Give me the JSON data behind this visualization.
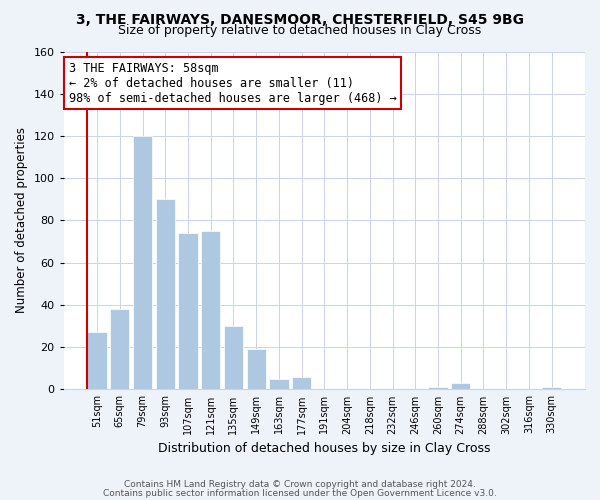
{
  "title": "3, THE FAIRWAYS, DANESMOOR, CHESTERFIELD, S45 9BG",
  "subtitle": "Size of property relative to detached houses in Clay Cross",
  "xlabel": "Distribution of detached houses by size in Clay Cross",
  "ylabel": "Number of detached properties",
  "bar_labels": [
    "51sqm",
    "65sqm",
    "79sqm",
    "93sqm",
    "107sqm",
    "121sqm",
    "135sqm",
    "149sqm",
    "163sqm",
    "177sqm",
    "191sqm",
    "204sqm",
    "218sqm",
    "232sqm",
    "246sqm",
    "260sqm",
    "274sqm",
    "288sqm",
    "302sqm",
    "316sqm",
    "330sqm"
  ],
  "bar_values": [
    27,
    38,
    120,
    90,
    74,
    75,
    30,
    19,
    5,
    6,
    0,
    0,
    0,
    0,
    0,
    1,
    3,
    0,
    0,
    0,
    1
  ],
  "bar_color": "#adc8e0",
  "highlight_color": "#cc0000",
  "annotation_text": "3 THE FAIRWAYS: 58sqm\n← 2% of detached houses are smaller (11)\n98% of semi-detached houses are larger (468) →",
  "ylim": [
    0,
    160
  ],
  "yticks": [
    0,
    20,
    40,
    60,
    80,
    100,
    120,
    140,
    160
  ],
  "footer1": "Contains HM Land Registry data © Crown copyright and database right 2024.",
  "footer2": "Contains public sector information licensed under the Open Government Licence v3.0.",
  "bg_color": "#eef2f9",
  "plot_bg_color": "#ffffff",
  "grid_color": "#c8d4e8"
}
